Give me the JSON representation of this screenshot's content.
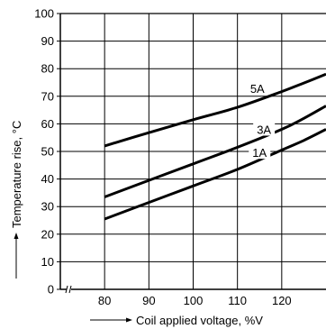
{
  "chart_data": {
    "type": "line",
    "title": "",
    "xlabel": "Coil applied voltage, %V",
    "ylabel": "Temperature rise, °C",
    "xlim": [
      70,
      130
    ],
    "ylim": [
      0,
      100
    ],
    "x_ticks": [
      80,
      90,
      100,
      110,
      120
    ],
    "y_ticks": [
      0,
      10,
      20,
      30,
      40,
      50,
      60,
      70,
      80,
      90,
      100
    ],
    "x_axis_break": true,
    "grid": true,
    "legend": "none",
    "series": [
      {
        "name": "5A",
        "x": [
          80,
          90,
          100,
          110,
          120,
          125,
          130
        ],
        "y": [
          52,
          56.8,
          61.5,
          66,
          71.7,
          74.8,
          78
        ]
      },
      {
        "name": "3A",
        "x": [
          80,
          90,
          100,
          110,
          120,
          125,
          130
        ],
        "y": [
          33.5,
          39.5,
          45.5,
          51.5,
          58,
          62,
          66.5
        ]
      },
      {
        "name": "1A",
        "x": [
          80,
          90,
          100,
          110,
          120,
          125,
          130
        ],
        "y": [
          25.5,
          31.5,
          37.5,
          43.5,
          50.5,
          54,
          58
        ]
      }
    ]
  }
}
